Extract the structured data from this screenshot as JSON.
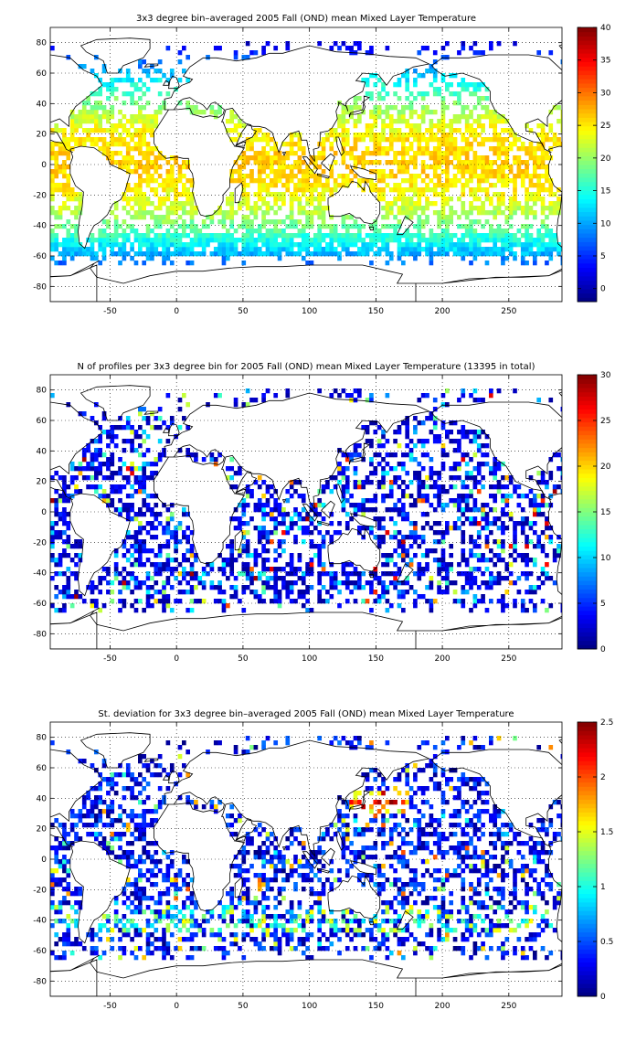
{
  "chart_data": [
    {
      "type": "heatmap",
      "title": "3x3 degree bin–averaged 2005 Fall (OND) mean Mixed Layer Temperature",
      "xlim": [
        -95,
        290
      ],
      "ylim": [
        -90,
        90
      ],
      "x_ticks": [
        "-50",
        "0",
        "50",
        "100",
        "150",
        "200",
        "250"
      ],
      "y_ticks": [
        "80",
        "60",
        "40",
        "20",
        "0",
        "-20",
        "-40",
        "-60",
        "-80"
      ],
      "colorbar": {
        "min": -2,
        "max": 40,
        "ticks": [
          "40",
          "35",
          "30",
          "25",
          "20",
          "15",
          "10",
          "5",
          "0"
        ]
      },
      "grid": true,
      "field": "temperature"
    },
    {
      "type": "heatmap",
      "title": "N of profiles per 3x3 degree bin for 2005 Fall (OND) mean Mixed Layer Temperature  (13395 in total)",
      "xlim": [
        -95,
        290
      ],
      "ylim": [
        -90,
        90
      ],
      "x_ticks": [
        "-50",
        "0",
        "50",
        "100",
        "150",
        "200",
        "250"
      ],
      "y_ticks": [
        "80",
        "60",
        "40",
        "20",
        "0",
        "-20",
        "-40",
        "-60",
        "-80"
      ],
      "colorbar": {
        "min": 0,
        "max": 30,
        "ticks": [
          "30",
          "25",
          "20",
          "15",
          "10",
          "5",
          "0"
        ]
      },
      "grid": true,
      "field": "count"
    },
    {
      "type": "heatmap",
      "title": "St. deviation for 3x3 degree bin–averaged 2005 Fall (OND) mean Mixed Layer Temperature",
      "xlim": [
        -95,
        290
      ],
      "ylim": [
        -90,
        90
      ],
      "x_ticks": [
        "-50",
        "0",
        "50",
        "100",
        "150",
        "200",
        "250"
      ],
      "y_ticks": [
        "80",
        "60",
        "40",
        "20",
        "0",
        "-20",
        "-40",
        "-60",
        "-80"
      ],
      "colorbar": {
        "min": 0,
        "max": 2.5,
        "ticks": [
          "2.5",
          "2",
          "1.5",
          "1",
          "0.5",
          "0"
        ]
      },
      "grid": true,
      "field": "stdev"
    }
  ]
}
